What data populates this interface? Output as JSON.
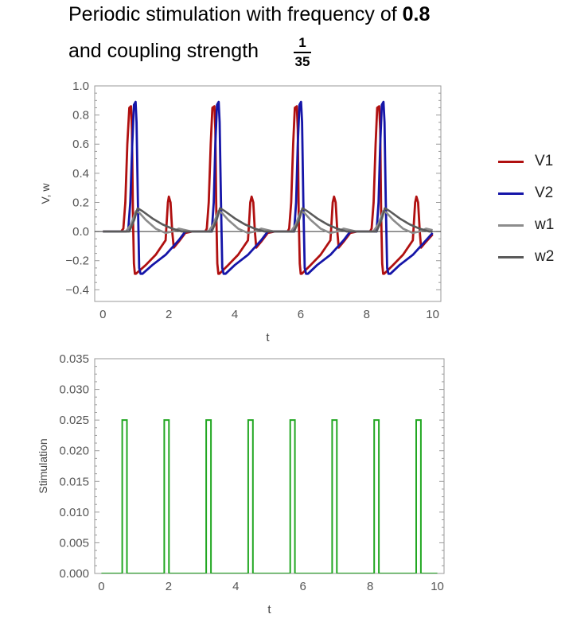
{
  "title": {
    "line1_prefix": "Periodic stimulation with frequency of ",
    "frequency": "0.8",
    "line2_prefix": "and coupling strength",
    "coupling_num": "1",
    "coupling_den": "35"
  },
  "colors": {
    "V1": "#b01010",
    "V2": "#1515a8",
    "w1": "#8c8c8c",
    "w2": "#5a5a5a",
    "stimulation": "#22a722",
    "frame": "#9a9a9a",
    "tick_text": "#555555"
  },
  "legend": [
    "V1",
    "V2",
    "w1",
    "w2"
  ],
  "chart_data": [
    {
      "type": "line",
      "xlabel": "t",
      "ylabel": "V, w",
      "xlim": [
        -0.25,
        10.25
      ],
      "ylim": [
        -0.48,
        1.0
      ],
      "xticks": [
        0,
        2,
        4,
        6,
        8,
        10
      ],
      "yticks": [
        -0.4,
        -0.2,
        0.0,
        0.2,
        0.4,
        0.6,
        0.8,
        1.0
      ],
      "ytick_labels": [
        "−0.4",
        "−0.2",
        "0.0",
        "0.2",
        "0.4",
        "0.6",
        "0.8",
        "1.0"
      ],
      "grid": false,
      "zero_line": true,
      "series": [
        {
          "name": "V1",
          "points": [
            [
              0,
              0
            ],
            [
              0.55,
              0.0
            ],
            [
              0.62,
              0.02
            ],
            [
              0.68,
              0.2
            ],
            [
              0.74,
              0.6
            ],
            [
              0.8,
              0.85
            ],
            [
              0.85,
              0.86
            ],
            [
              0.88,
              0.7
            ],
            [
              0.91,
              0.1
            ],
            [
              0.94,
              -0.22
            ],
            [
              0.97,
              -0.29
            ],
            [
              1.0,
              -0.29
            ],
            [
              1.3,
              -0.23
            ],
            [
              1.6,
              -0.16
            ],
            [
              1.9,
              -0.06
            ],
            [
              1.93,
              0.05
            ],
            [
              1.97,
              0.2
            ],
            [
              2.0,
              0.24
            ],
            [
              2.05,
              0.2
            ],
            [
              2.1,
              0.0
            ],
            [
              2.15,
              -0.11
            ],
            [
              2.3,
              -0.07
            ],
            [
              2.5,
              -0.01
            ],
            [
              2.7,
              0.0
            ],
            [
              3.1,
              0.0
            ],
            [
              3.15,
              0.02
            ],
            [
              3.21,
              0.2
            ],
            [
              3.27,
              0.6
            ],
            [
              3.32,
              0.85
            ],
            [
              3.38,
              0.86
            ],
            [
              3.41,
              0.7
            ],
            [
              3.44,
              0.1
            ],
            [
              3.47,
              -0.22
            ],
            [
              3.5,
              -0.29
            ],
            [
              3.53,
              -0.29
            ],
            [
              3.8,
              -0.23
            ],
            [
              4.1,
              -0.16
            ],
            [
              4.4,
              -0.06
            ],
            [
              4.43,
              0.05
            ],
            [
              4.47,
              0.2
            ],
            [
              4.51,
              0.24
            ],
            [
              4.56,
              0.2
            ],
            [
              4.61,
              0.0
            ],
            [
              4.65,
              -0.11
            ],
            [
              4.8,
              -0.07
            ],
            [
              5.0,
              -0.01
            ],
            [
              5.2,
              0.0
            ],
            [
              5.6,
              0.0
            ],
            [
              5.65,
              0.02
            ],
            [
              5.71,
              0.2
            ],
            [
              5.77,
              0.6
            ],
            [
              5.82,
              0.85
            ],
            [
              5.88,
              0.86
            ],
            [
              5.91,
              0.7
            ],
            [
              5.94,
              0.1
            ],
            [
              5.97,
              -0.22
            ],
            [
              6.0,
              -0.29
            ],
            [
              6.03,
              -0.29
            ],
            [
              6.3,
              -0.23
            ],
            [
              6.6,
              -0.16
            ],
            [
              6.9,
              -0.06
            ],
            [
              6.93,
              0.05
            ],
            [
              6.97,
              0.2
            ],
            [
              7.01,
              0.24
            ],
            [
              7.06,
              0.2
            ],
            [
              7.11,
              0.0
            ],
            [
              7.15,
              -0.11
            ],
            [
              7.3,
              -0.07
            ],
            [
              7.5,
              -0.01
            ],
            [
              7.7,
              0.0
            ],
            [
              8.1,
              0.0
            ],
            [
              8.15,
              0.02
            ],
            [
              8.21,
              0.2
            ],
            [
              8.27,
              0.6
            ],
            [
              8.32,
              0.85
            ],
            [
              8.38,
              0.86
            ],
            [
              8.41,
              0.7
            ],
            [
              8.44,
              0.1
            ],
            [
              8.47,
              -0.22
            ],
            [
              8.5,
              -0.29
            ],
            [
              8.53,
              -0.29
            ],
            [
              8.8,
              -0.23
            ],
            [
              9.1,
              -0.16
            ],
            [
              9.4,
              -0.06
            ],
            [
              9.43,
              0.05
            ],
            [
              9.47,
              0.2
            ],
            [
              9.51,
              0.24
            ],
            [
              9.56,
              0.2
            ],
            [
              9.61,
              0.0
            ],
            [
              9.65,
              -0.11
            ],
            [
              9.8,
              -0.07
            ],
            [
              10.0,
              -0.02
            ]
          ]
        },
        {
          "name": "V2",
          "points": [
            [
              0,
              0
            ],
            [
              0.7,
              0.0
            ],
            [
              0.77,
              0.02
            ],
            [
              0.83,
              0.2
            ],
            [
              0.89,
              0.6
            ],
            [
              0.94,
              0.87
            ],
            [
              0.99,
              0.89
            ],
            [
              1.02,
              0.75
            ],
            [
              1.06,
              0.2
            ],
            [
              1.1,
              -0.25
            ],
            [
              1.14,
              -0.29
            ],
            [
              1.2,
              -0.29
            ],
            [
              1.5,
              -0.23
            ],
            [
              1.9,
              -0.16
            ],
            [
              2.3,
              -0.06
            ],
            [
              2.5,
              0.0
            ],
            [
              3.3,
              0.0
            ],
            [
              3.36,
              0.2
            ],
            [
              3.41,
              0.6
            ],
            [
              3.46,
              0.87
            ],
            [
              3.51,
              0.89
            ],
            [
              3.54,
              0.75
            ],
            [
              3.58,
              0.2
            ],
            [
              3.62,
              -0.25
            ],
            [
              3.66,
              -0.29
            ],
            [
              3.72,
              -0.29
            ],
            [
              4.0,
              -0.23
            ],
            [
              4.4,
              -0.16
            ],
            [
              4.8,
              -0.06
            ],
            [
              5.0,
              0.0
            ],
            [
              5.8,
              0.0
            ],
            [
              5.86,
              0.2
            ],
            [
              5.91,
              0.6
            ],
            [
              5.96,
              0.87
            ],
            [
              6.01,
              0.89
            ],
            [
              6.04,
              0.75
            ],
            [
              6.08,
              0.2
            ],
            [
              6.12,
              -0.25
            ],
            [
              6.16,
              -0.29
            ],
            [
              6.22,
              -0.29
            ],
            [
              6.5,
              -0.23
            ],
            [
              6.9,
              -0.16
            ],
            [
              7.3,
              -0.06
            ],
            [
              7.5,
              0.0
            ],
            [
              8.3,
              0.0
            ],
            [
              8.36,
              0.2
            ],
            [
              8.41,
              0.6
            ],
            [
              8.46,
              0.87
            ],
            [
              8.51,
              0.89
            ],
            [
              8.54,
              0.75
            ],
            [
              8.58,
              0.2
            ],
            [
              8.62,
              -0.25
            ],
            [
              8.66,
              -0.29
            ],
            [
              8.72,
              -0.29
            ],
            [
              9.0,
              -0.23
            ],
            [
              9.4,
              -0.16
            ],
            [
              9.8,
              -0.06
            ],
            [
              10.0,
              -0.01
            ]
          ]
        },
        {
          "name": "w1",
          "points": [
            [
              0,
              0
            ],
            [
              0.7,
              0.0
            ],
            [
              0.85,
              0.05
            ],
            [
              1.0,
              0.14
            ],
            [
              1.1,
              0.13
            ],
            [
              1.3,
              0.08
            ],
            [
              1.6,
              0.02
            ],
            [
              1.9,
              -0.01
            ],
            [
              2.1,
              0.0
            ],
            [
              2.3,
              0.02
            ],
            [
              2.5,
              0.01
            ],
            [
              2.7,
              0.0
            ],
            [
              3.2,
              0.0
            ],
            [
              3.35,
              0.05
            ],
            [
              3.5,
              0.14
            ],
            [
              3.6,
              0.13
            ],
            [
              3.8,
              0.08
            ],
            [
              4.1,
              0.02
            ],
            [
              4.4,
              -0.01
            ],
            [
              4.6,
              0.0
            ],
            [
              4.8,
              0.02
            ],
            [
              5.0,
              0.01
            ],
            [
              5.2,
              0.0
            ],
            [
              5.7,
              0.0
            ],
            [
              5.85,
              0.05
            ],
            [
              6.0,
              0.14
            ],
            [
              6.1,
              0.13
            ],
            [
              6.3,
              0.08
            ],
            [
              6.6,
              0.02
            ],
            [
              6.9,
              -0.01
            ],
            [
              7.1,
              0.0
            ],
            [
              7.3,
              0.02
            ],
            [
              7.5,
              0.01
            ],
            [
              7.7,
              0.0
            ],
            [
              8.2,
              0.0
            ],
            [
              8.35,
              0.05
            ],
            [
              8.5,
              0.14
            ],
            [
              8.6,
              0.13
            ],
            [
              8.8,
              0.08
            ],
            [
              9.1,
              0.02
            ],
            [
              9.4,
              -0.01
            ],
            [
              9.6,
              0.0
            ],
            [
              9.8,
              0.02
            ],
            [
              10.0,
              0.01
            ]
          ]
        },
        {
          "name": "w2",
          "points": [
            [
              0,
              0
            ],
            [
              0.8,
              0.0
            ],
            [
              0.95,
              0.08
            ],
            [
              1.05,
              0.16
            ],
            [
              1.2,
              0.14
            ],
            [
              1.5,
              0.09
            ],
            [
              1.8,
              0.05
            ],
            [
              2.1,
              0.02
            ],
            [
              2.4,
              0.0
            ],
            [
              3.3,
              0.0
            ],
            [
              3.45,
              0.08
            ],
            [
              3.55,
              0.16
            ],
            [
              3.7,
              0.14
            ],
            [
              4.0,
              0.09
            ],
            [
              4.3,
              0.05
            ],
            [
              4.6,
              0.02
            ],
            [
              4.9,
              0.0
            ],
            [
              5.8,
              0.0
            ],
            [
              5.95,
              0.08
            ],
            [
              6.05,
              0.16
            ],
            [
              6.2,
              0.14
            ],
            [
              6.5,
              0.09
            ],
            [
              6.8,
              0.05
            ],
            [
              7.1,
              0.02
            ],
            [
              7.4,
              0.0
            ],
            [
              8.3,
              0.0
            ],
            [
              8.45,
              0.08
            ],
            [
              8.55,
              0.16
            ],
            [
              8.7,
              0.14
            ],
            [
              9.0,
              0.09
            ],
            [
              9.3,
              0.05
            ],
            [
              9.6,
              0.02
            ],
            [
              9.9,
              0.0
            ],
            [
              10.0,
              0.0
            ]
          ]
        }
      ]
    },
    {
      "type": "line",
      "xlabel": "t",
      "ylabel": "Stimulation",
      "xlim": [
        -0.2,
        10.2
      ],
      "ylim": [
        0,
        0.035
      ],
      "xticks": [
        0,
        2,
        4,
        6,
        8,
        10
      ],
      "yticks": [
        0.0,
        0.005,
        0.01,
        0.015,
        0.02,
        0.025,
        0.03,
        0.035
      ],
      "ytick_labels": [
        "0.000",
        "0.005",
        "0.010",
        "0.015",
        "0.020",
        "0.025",
        "0.030",
        "0.035"
      ],
      "grid": false,
      "pulse_amplitude": 0.025,
      "pulse_starts": [
        0.62,
        1.87,
        3.12,
        4.37,
        5.62,
        6.87,
        8.12,
        9.37
      ],
      "pulse_width": 0.14
    }
  ]
}
